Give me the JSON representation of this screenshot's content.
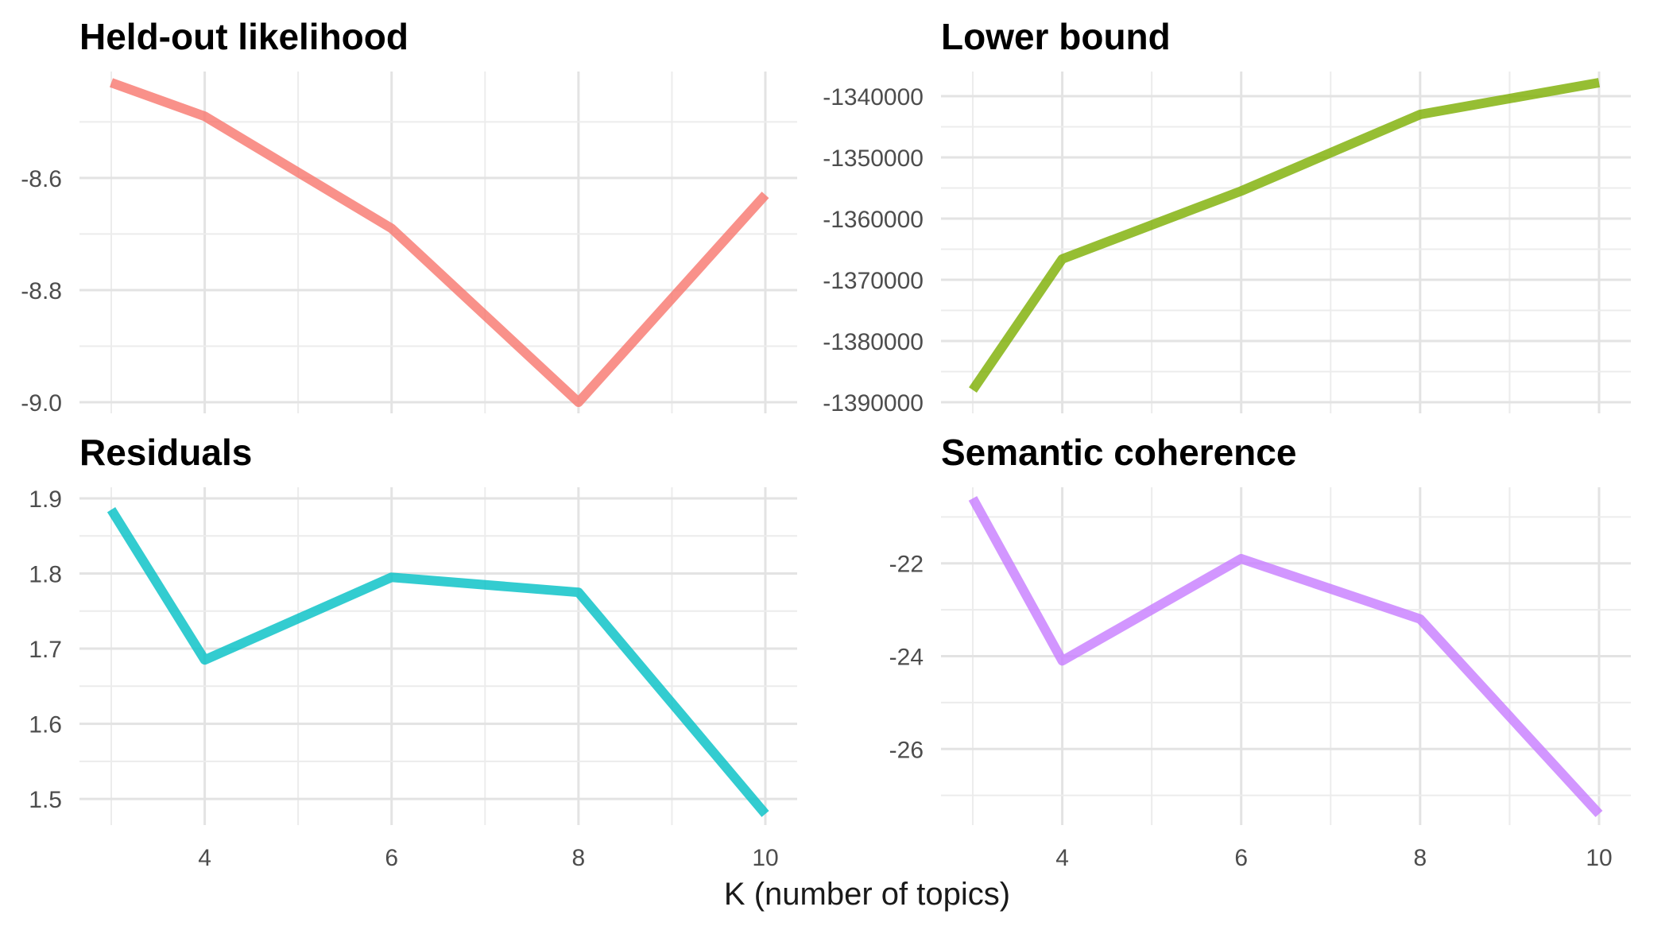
{
  "chart_data": {
    "type": "line",
    "facet_layout": "2x2",
    "xlabel": "K (number of topics)",
    "x_tick_labels": [
      "4",
      "6",
      "8",
      "10"
    ],
    "panels": [
      {
        "title": "Held-out likelihood",
        "x": [
          3,
          4,
          6,
          8,
          10
        ],
        "y": [
          -8.43,
          -8.49,
          -8.69,
          -9.0,
          -8.63
        ],
        "ylim": [
          -9.0,
          -8.43
        ],
        "y_tick_values": [
          -9.0,
          -8.8,
          -8.6
        ],
        "y_tick_labels": [
          "-9.0",
          "-8.8",
          "-8.6"
        ],
        "color": "#F8766D"
      },
      {
        "title": "Lower bound",
        "x": [
          3,
          4,
          6,
          8,
          10
        ],
        "y": [
          -1388000,
          -1366600,
          -1355500,
          -1343000,
          -1337800
        ],
        "ylim": [
          -1390000,
          -1337800
        ],
        "y_tick_values": [
          -1390000,
          -1380000,
          -1370000,
          -1360000,
          -1350000,
          -1340000
        ],
        "y_tick_labels": [
          "-1390000",
          "-1380000",
          "-1370000",
          "-1360000",
          "-1350000",
          "-1340000"
        ],
        "color": "#7CAE00"
      },
      {
        "title": "Residuals",
        "x": [
          3,
          4,
          6,
          8,
          10
        ],
        "y": [
          1.885,
          1.685,
          1.795,
          1.775,
          1.48
        ],
        "ylim": [
          1.48,
          1.9
        ],
        "y_tick_values": [
          1.5,
          1.6,
          1.7,
          1.8,
          1.9
        ],
        "y_tick_labels": [
          "1.5",
          "1.6",
          "1.7",
          "1.8",
          "1.9"
        ],
        "color": "#00BFC4"
      },
      {
        "title": "Semantic coherence",
        "x": [
          3,
          4,
          6,
          8,
          10
        ],
        "y": [
          -20.6,
          -24.1,
          -21.9,
          -23.2,
          -27.4
        ],
        "ylim": [
          -27.4,
          -20.6
        ],
        "y_tick_values": [
          -26,
          -24,
          -22
        ],
        "y_tick_labels": [
          "-26",
          "-24",
          "-22"
        ],
        "color": "#C77CFF"
      }
    ],
    "grid": true,
    "legend": "none",
    "line_opacity": 0.8
  }
}
